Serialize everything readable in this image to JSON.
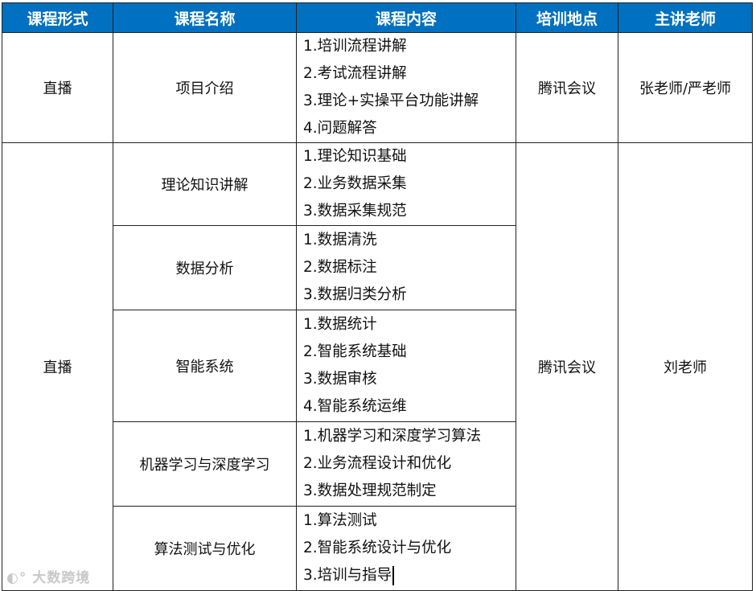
{
  "headers": [
    "课程形式",
    "课程名称",
    "课程内容",
    "培训地点",
    "主讲老师"
  ],
  "rows": [
    {
      "form": "直播",
      "name": "项目介绍",
      "content": [
        "1.培训流程讲解",
        "2.考试流程讲解",
        "3.理论+实操平台功能讲解",
        "4.问题解答"
      ],
      "location": "腾讯会议",
      "teacher": "张老师/严老师"
    },
    {
      "form": "直播",
      "location": "腾讯会议",
      "teacher": "刘老师",
      "courses": [
        {
          "name": "理论知识讲解",
          "content": [
            "1.理论知识基础",
            "2.业务数据采集",
            "3.数据采集规范"
          ]
        },
        {
          "name": "数据分析",
          "content": [
            "1.数据清洗",
            "2.数据标注",
            "3.数据归类分析"
          ]
        },
        {
          "name": "智能系统",
          "content": [
            "1.数据统计",
            "2.智能系统基础",
            "3.数据审核",
            "4.智能系统运维"
          ]
        },
        {
          "name": "机器学习与深度学习",
          "content": [
            "1.机器学习和深度学习算法",
            "2.业务流程设计和优化",
            "3.数据处理规范制定"
          ]
        },
        {
          "name": "算法测试与优化",
          "content": [
            "1.算法测试",
            "2.智能系统设计与优化",
            "3.培训与指导"
          ]
        }
      ]
    }
  ],
  "watermark": "大数跨境",
  "colors": {
    "header_bg": "#0070C0",
    "header_text": "#FFFFFF"
  }
}
